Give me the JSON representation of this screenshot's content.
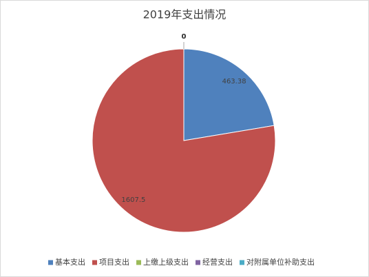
{
  "chart_data": {
    "type": "pie",
    "title": "2019年支出情况",
    "categories": [
      "基本支出",
      "项目支出",
      "上缴上级支出",
      "经营支出",
      "对附属单位补助支出"
    ],
    "values": [
      463.38,
      1607.5,
      0,
      0,
      0
    ],
    "colors": [
      "#4f81bd",
      "#c0504d",
      "#9bbb59",
      "#8064a2",
      "#4bacc6"
    ],
    "legend": "bottom"
  }
}
